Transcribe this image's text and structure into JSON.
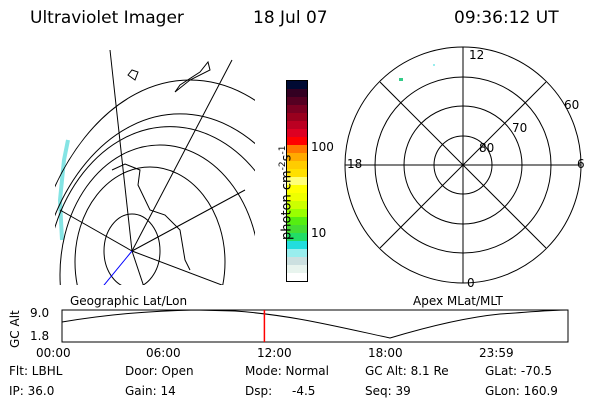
{
  "header": {
    "title": "Ultraviolet Imager",
    "date": "18 Jul 07",
    "time": "09:36:12 UT"
  },
  "colorbar": {
    "unit_label": "photon cm",
    "unit_exp1": "-2",
    "unit_mid": "s",
    "unit_exp2": "-1",
    "ticks": [
      "100",
      "10"
    ],
    "colors": [
      "#000a33",
      "#330022",
      "#550022",
      "#7a0022",
      "#99001e",
      "#bb0022",
      "#dd0022",
      "#ff0000",
      "#ff7700",
      "#ffaa00",
      "#ffcc00",
      "#ffe000",
      "#ffff77",
      "#ffff00",
      "#eeff00",
      "#ccff00",
      "#99ff00",
      "#55ee11",
      "#44dd33",
      "#22dd66",
      "#22dddd",
      "#99eeee",
      "#cce0e0",
      "#e8f4ee",
      "#ffffff"
    ]
  },
  "left_map": {
    "label": "Geographic Lat/Lon"
  },
  "right_map": {
    "label": "Apex MLat/MLT",
    "mlt_labels": {
      "top": "12",
      "bottom": "0",
      "left": "18",
      "right": "6"
    },
    "lat_labels": [
      "60",
      "70",
      "80"
    ]
  },
  "altitude_plot": {
    "ylabel": "GC Alt",
    "yticks": [
      "9.0",
      "1.8"
    ],
    "xticks": [
      "00:00",
      "06:00",
      "12:00",
      "18:00",
      "23:59"
    ],
    "current_time_marker_hours": 9.6,
    "marker_color": "#ff0000"
  },
  "status": {
    "filter": "Flt: LBHL",
    "ip": "IP: 36.0",
    "door": "Door: Open",
    "gain": "Gain: 14",
    "mode": "Mode: Normal",
    "dsp_label": "Dsp:",
    "dsp_value": "-4.5",
    "gc_alt": "GC Alt: 8.1 Re",
    "seq": "Seq: 39",
    "glat": "GLat: -70.5",
    "glon": "GLon: 160.9"
  }
}
